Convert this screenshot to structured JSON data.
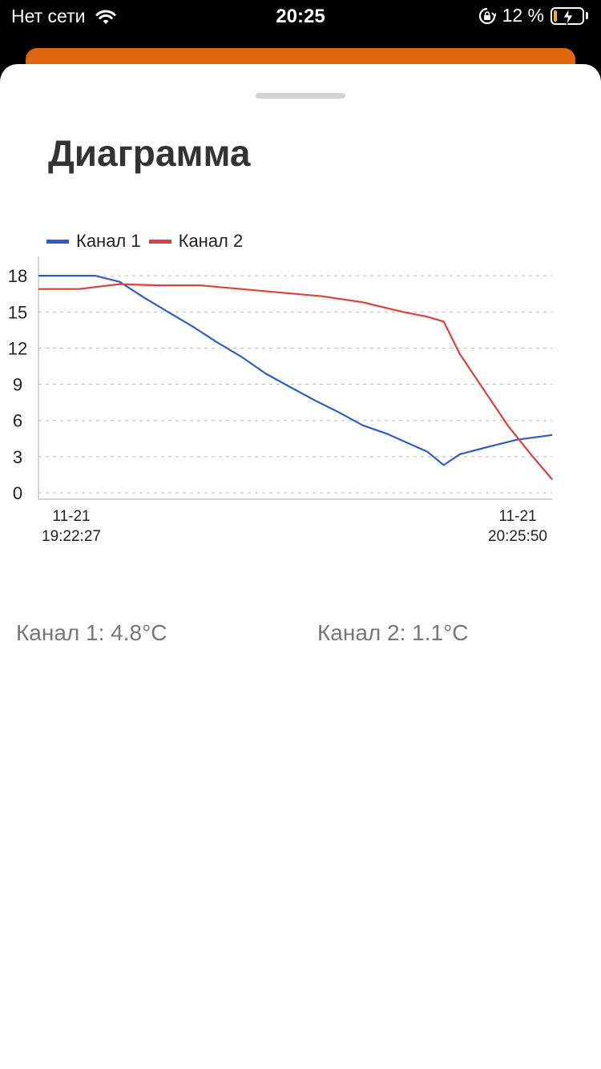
{
  "status_bar": {
    "carrier": "Нет сети",
    "time": "20:25",
    "battery_percent": "12 %",
    "battery_level": 0.12,
    "icons": [
      "wifi-icon",
      "orientation-lock-icon",
      "battery-charging-icon"
    ]
  },
  "sheet": {
    "title": "Диаграмма"
  },
  "readouts": {
    "channel1": "Канал 1: 4.8°C",
    "channel2": "Канал 2: 1.1°C"
  },
  "colors": {
    "channel1": "#2d5ec7",
    "channel2": "#e0403a",
    "accent": "#e0650f"
  },
  "chart_data": {
    "type": "line",
    "legend_position": "top-left",
    "grid": true,
    "ylim": [
      0,
      19.5
    ],
    "yticks": [
      0,
      3,
      6,
      9,
      12,
      15,
      18
    ],
    "x_start_label": [
      "11-21",
      "19:22:27"
    ],
    "x_end_label": [
      "11-21",
      "20:25:50"
    ],
    "x_range_minutes": [
      0,
      63.38
    ],
    "series": [
      {
        "name": "Канал 1",
        "color": "#2d5ec7",
        "points": [
          [
            0,
            18.0
          ],
          [
            7.0,
            18.0
          ],
          [
            10.0,
            17.5
          ],
          [
            13.0,
            16.2
          ],
          [
            16.0,
            15.0
          ],
          [
            19.0,
            13.8
          ],
          [
            22.0,
            12.5
          ],
          [
            25.0,
            11.3
          ],
          [
            28.0,
            9.9
          ],
          [
            31.0,
            8.8
          ],
          [
            34.0,
            7.7
          ],
          [
            37.0,
            6.7
          ],
          [
            40.0,
            5.6
          ],
          [
            43.0,
            4.9
          ],
          [
            46.0,
            4.0
          ],
          [
            48.0,
            3.4
          ],
          [
            50.0,
            2.3
          ],
          [
            52.0,
            3.2
          ],
          [
            56.0,
            3.9
          ],
          [
            59.0,
            4.4
          ],
          [
            63.4,
            4.8
          ]
        ]
      },
      {
        "name": "Канал 2",
        "color": "#e0403a",
        "points": [
          [
            0,
            16.9
          ],
          [
            5.0,
            16.9
          ],
          [
            10.0,
            17.3
          ],
          [
            15.0,
            17.2
          ],
          [
            20.0,
            17.2
          ],
          [
            25.0,
            16.9
          ],
          [
            30.0,
            16.6
          ],
          [
            35.0,
            16.3
          ],
          [
            40.0,
            15.8
          ],
          [
            45.0,
            15.0
          ],
          [
            48.0,
            14.6
          ],
          [
            50.0,
            14.2
          ],
          [
            52.0,
            11.5
          ],
          [
            55.0,
            8.5
          ],
          [
            58.0,
            5.5
          ],
          [
            61.0,
            3.0
          ],
          [
            63.4,
            1.1
          ]
        ]
      }
    ]
  }
}
